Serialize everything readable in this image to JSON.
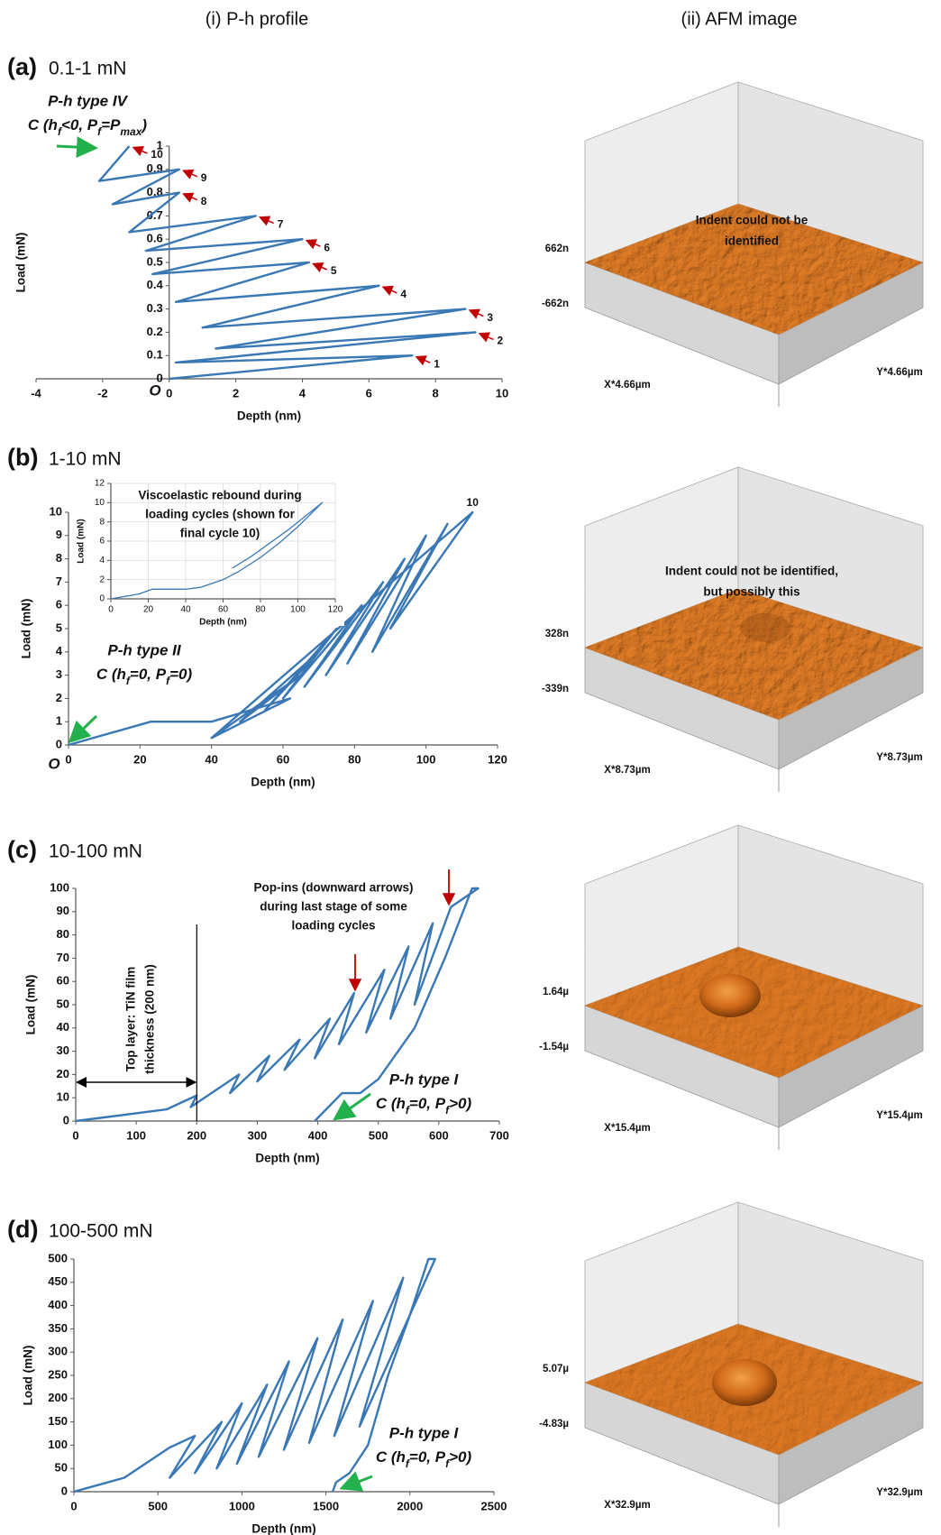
{
  "headers": [
    "(i) P-h profile",
    "(ii) AFM image"
  ],
  "chart_data": [
    {
      "type": "line",
      "panel": "(a)",
      "load_range": "0.1-1 mN",
      "type_label": "P-h type IV",
      "condition": [
        "C (h",
        "f",
        "<0, P",
        "f",
        "=P",
        "max",
        ")"
      ],
      "origin_label": "O",
      "xlabel": "Depth (nm)",
      "ylabel": "Load (mN)",
      "xlim": [
        -4,
        10
      ],
      "xticks": [
        -4,
        -2,
        0,
        2,
        4,
        6,
        8,
        10
      ],
      "ylim": [
        0,
        1
      ],
      "yticks": [
        0,
        0.1,
        0.2,
        0.3,
        0.4,
        0.5,
        0.6,
        0.7,
        0.8,
        0.9,
        1
      ],
      "series": [
        {
          "color": "#3a78b5",
          "x": [
            0,
            7.3,
            0.2,
            9.2,
            1.4,
            8.9,
            1.0,
            6.3,
            0.2,
            4.2,
            -0.5,
            4.0,
            -0.7,
            2.6,
            -1.2,
            0.3,
            -1.7,
            0.3,
            -2.1,
            -1.2
          ],
          "values": [
            0,
            0.1,
            0.07,
            0.2,
            0.13,
            0.3,
            0.22,
            0.4,
            0.33,
            0.5,
            0.45,
            0.6,
            0.55,
            0.7,
            0.63,
            0.8,
            0.75,
            0.9,
            0.85,
            1.0
          ]
        }
      ],
      "cycle_labels": [
        "1",
        "2",
        "3",
        "4",
        "5",
        "6",
        "7",
        "8",
        "9",
        "10"
      ]
    },
    {
      "type": "line",
      "panel": "(b)",
      "load_range": "1-10 mN",
      "type_label": "P-h type II",
      "condition": [
        "C (h",
        "f",
        "=0, P",
        "f",
        "=0)"
      ],
      "origin_label": "O",
      "xlabel": "Depth (nm)",
      "ylabel": "Load (mN)",
      "xlim": [
        0,
        120
      ],
      "xticks": [
        0,
        20,
        40,
        60,
        80,
        100,
        120
      ],
      "ylim": [
        0,
        10
      ],
      "yticks": [
        0,
        1,
        2,
        3,
        4,
        5,
        6,
        7,
        8,
        9,
        10
      ],
      "series": [
        {
          "color": "#3a78b5",
          "x": [
            0,
            23,
            40,
            62,
            40,
            65,
            48,
            70,
            55,
            75,
            60,
            82,
            66,
            88,
            72,
            94,
            78,
            100,
            85,
            106,
            90,
            113,
            40
          ],
          "values": [
            0,
            1,
            1,
            2,
            0.3,
            3,
            1.0,
            4,
            1.5,
            5,
            2,
            6,
            2.5,
            7,
            3,
            8,
            3.5,
            9,
            4,
            9.5,
            5,
            10,
            0.3
          ]
        }
      ],
      "cycle_labels": [
        "10"
      ],
      "inset": {
        "type": "line",
        "note": [
          "Viscoelastic rebound during",
          "loading cycles (shown for",
          "final cycle 10)"
        ],
        "xlabel": "Depth (nm)",
        "ylabel": "Load (mN)",
        "grid": true,
        "xlim": [
          0,
          120
        ],
        "xticks": [
          0,
          20,
          40,
          60,
          80,
          100,
          120
        ],
        "ylim": [
          0,
          12
        ],
        "yticks": [
          0,
          2,
          4,
          6,
          8,
          10,
          12
        ],
        "series": [
          {
            "color": "#3a78b5",
            "x": [
              0,
              15,
              22,
              40,
              48,
              60,
              68,
              80,
              90,
              100,
              113,
              104,
              95,
              85,
              75,
              65
            ],
            "values": [
              0,
              0.5,
              1,
              1,
              1.2,
              2,
              2.8,
              4.3,
              5.8,
              7.5,
              10,
              8.6,
              7.2,
              5.8,
              4.4,
              3.2
            ]
          }
        ]
      }
    },
    {
      "type": "line",
      "panel": "(c)",
      "load_range": "10-100 mN",
      "type_label": "P-h type I",
      "condition": [
        "C (h",
        "f",
        "=0, P",
        "f",
        ">0)"
      ],
      "xlabel": "Depth (nm)",
      "ylabel": "Load (mN)",
      "xlim": [
        0,
        700
      ],
      "xticks": [
        0,
        100,
        200,
        300,
        400,
        500,
        600,
        700
      ],
      "ylim": [
        0,
        100
      ],
      "yticks": [
        0,
        10,
        20,
        30,
        40,
        50,
        60,
        70,
        80,
        90,
        100
      ],
      "annotations": [
        [
          "Pop-ins (downward arrows)",
          "during last stage of some",
          "loading cycles"
        ],
        [
          "Top layer: TiN film",
          "thickness (200 nm)"
        ]
      ],
      "marker_x": 200,
      "series": [
        {
          "color": "#3a78b5",
          "x": [
            0,
            150,
            200,
            190,
            270,
            255,
            320,
            300,
            370,
            345,
            420,
            395,
            460,
            435,
            510,
            480,
            550,
            520,
            590,
            560,
            620,
            665,
            655,
            610,
            560,
            500,
            470,
            440,
            395
          ],
          "values": [
            0,
            5,
            11,
            6,
            20,
            12,
            28,
            17,
            35,
            22,
            44,
            27,
            55,
            33,
            65,
            38,
            75,
            44,
            85,
            50,
            92,
            100,
            100,
            70,
            40,
            18,
            12,
            12,
            0
          ]
        }
      ]
    },
    {
      "type": "line",
      "panel": "(d)",
      "load_range": "100-500 mN",
      "type_label": "P-h type I",
      "condition": [
        "C (h",
        "f",
        "=0, P",
        "f",
        ">0)"
      ],
      "xlabel": "Depth (nm)",
      "ylabel": "Load (mN)",
      "xlim": [
        0,
        2500
      ],
      "xticks": [
        0,
        500,
        1000,
        1500,
        2000,
        2500
      ],
      "ylim": [
        0,
        500
      ],
      "yticks": [
        0,
        50,
        100,
        150,
        200,
        250,
        300,
        350,
        400,
        450,
        500
      ],
      "series": [
        {
          "color": "#3a78b5",
          "x": [
            0,
            300,
            570,
            720,
            570,
            880,
            720,
            1000,
            850,
            1150,
            970,
            1280,
            1100,
            1450,
            1250,
            1600,
            1400,
            1780,
            1550,
            1960,
            1700,
            2150,
            2110,
            2000,
            1870,
            1750,
            1640,
            1560,
            1540
          ],
          "values": [
            0,
            30,
            95,
            120,
            30,
            150,
            40,
            190,
            50,
            230,
            60,
            280,
            75,
            330,
            90,
            370,
            105,
            410,
            120,
            460,
            140,
            500,
            500,
            380,
            250,
            100,
            40,
            20,
            0
          ]
        }
      ]
    }
  ],
  "afm_images": [
    {
      "note": [
        "Indent could not be",
        "identified"
      ],
      "z_top": "662n",
      "z_bottom": "-662n",
      "x_label": "X*4.66µm",
      "y_label": "Y*4.66µm"
    },
    {
      "note": [
        "Indent could not be identified,",
        "but possibly this"
      ],
      "z_top": "328n",
      "z_bottom": "-339n",
      "x_label": "X*8.73µm",
      "y_label": "Y*8.73µm"
    },
    {
      "z_top": "1.64µ",
      "z_bottom": "-1.54µ",
      "x_label": "X*15.4µm",
      "y_label": "Y*15.4µm"
    },
    {
      "z_top": "5.07µ",
      "z_bottom": "-4.83µ",
      "x_label": "X*32.9µm",
      "y_label": "Y*32.9µm"
    }
  ]
}
